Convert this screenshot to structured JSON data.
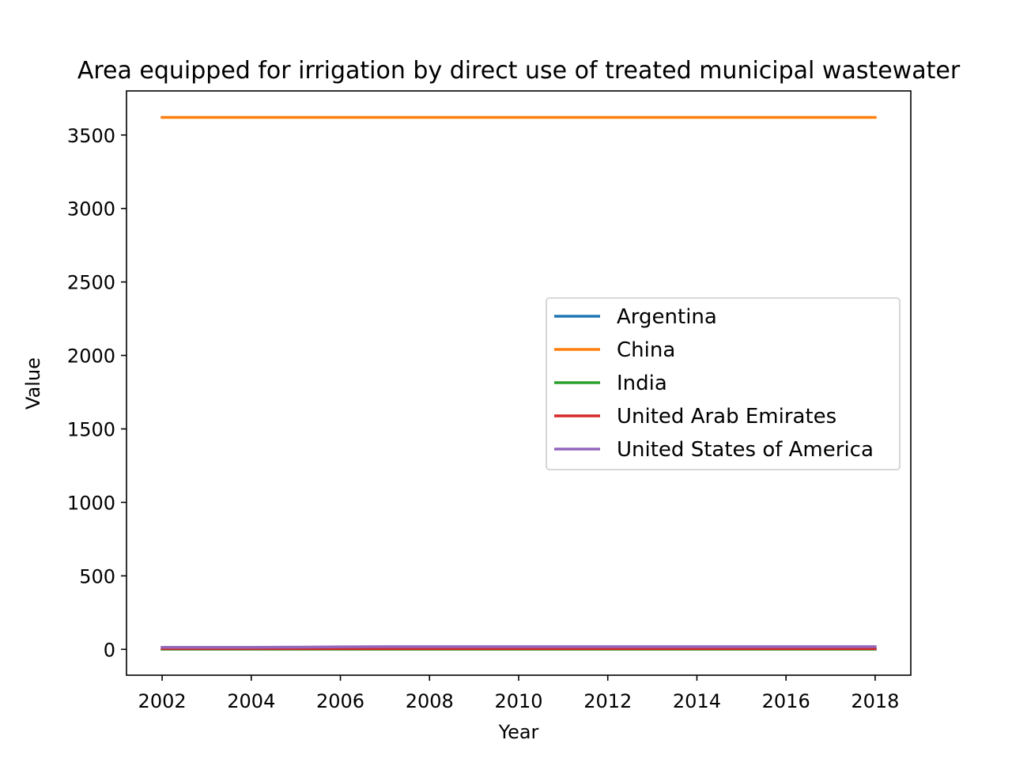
{
  "chart_data": {
    "type": "line",
    "title": "Area equipped for irrigation by direct use of treated municipal wastewater",
    "xlabel": "Year",
    "ylabel": "Value",
    "xlim": [
      2001.2,
      2018.8
    ],
    "ylim": [
      -176,
      3800
    ],
    "x_ticks": [
      2002,
      2004,
      2006,
      2008,
      2010,
      2012,
      2014,
      2016,
      2018
    ],
    "y_ticks": [
      0,
      500,
      1000,
      1500,
      2000,
      2500,
      3000,
      3500
    ],
    "grid": false,
    "legend_position": "center-right",
    "x": [
      2002,
      2003,
      2004,
      2005,
      2006,
      2007,
      2008,
      2009,
      2010,
      2011,
      2012,
      2013,
      2014,
      2015,
      2016,
      2017,
      2018
    ],
    "series": [
      {
        "name": "Argentina",
        "color": "#1f77b4",
        "values": [
          3,
          3,
          3,
          3,
          3,
          3,
          3,
          3,
          3,
          3,
          3,
          3,
          3,
          3,
          3,
          3,
          3
        ]
      },
      {
        "name": "China",
        "color": "#ff7f0e",
        "values": [
          3620,
          3620,
          3620,
          3620,
          3620,
          3620,
          3620,
          3620,
          3620,
          3620,
          3620,
          3620,
          3620,
          3620,
          3620,
          3620,
          3620
        ]
      },
      {
        "name": "India",
        "color": "#2ca02c",
        "values": [
          1,
          1,
          1,
          1,
          1,
          1,
          1,
          1,
          1,
          1,
          1,
          1,
          1,
          1,
          1,
          1,
          1
        ]
      },
      {
        "name": "United Arab Emirates",
        "color": "#d62728",
        "values": [
          5,
          5,
          5,
          5,
          5,
          5,
          5,
          5,
          5,
          5,
          5,
          5,
          5,
          5,
          5,
          5,
          5
        ]
      },
      {
        "name": "United States of America",
        "color": "#9467bd",
        "values": [
          14,
          14,
          14,
          15,
          17,
          18,
          18,
          18,
          18,
          18,
          18,
          18,
          18,
          18,
          18,
          18,
          18
        ]
      }
    ]
  }
}
